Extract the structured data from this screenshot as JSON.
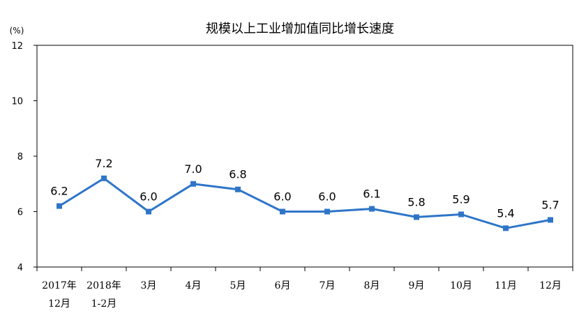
{
  "chart_data": {
    "type": "line",
    "title": "规模以上工业增加值同比增长速度",
    "ylabel": "(%)",
    "ylim": [
      4,
      12
    ],
    "yticks": [
      "4",
      "6",
      "8",
      "10",
      "12"
    ],
    "categories": [
      {
        "line1": "2017年",
        "line2": "12月"
      },
      {
        "line1": "2018年",
        "line2": "1-2月"
      },
      {
        "line1": "3月",
        "line2": ""
      },
      {
        "line1": "4月",
        "line2": ""
      },
      {
        "line1": "5月",
        "line2": ""
      },
      {
        "line1": "6月",
        "line2": ""
      },
      {
        "line1": "7月",
        "line2": ""
      },
      {
        "line1": "8月",
        "line2": ""
      },
      {
        "line1": "9月",
        "line2": ""
      },
      {
        "line1": "10月",
        "line2": ""
      },
      {
        "line1": "11月",
        "line2": ""
      },
      {
        "line1": "12月",
        "line2": ""
      }
    ],
    "values": [
      6.2,
      7.2,
      6.0,
      7.0,
      6.8,
      6.0,
      6.0,
      6.1,
      5.8,
      5.9,
      5.4,
      5.7
    ],
    "value_labels": [
      "6.2",
      "7.2",
      "6.0",
      "7.0",
      "6.8",
      "6.0",
      "6.0",
      "6.1",
      "5.8",
      "5.9",
      "5.4",
      "5.7"
    ],
    "grid": false,
    "legend": "none",
    "colors": {
      "line": "#2e75c8",
      "marker": "#2e75c8",
      "axis": "#000000"
    }
  }
}
